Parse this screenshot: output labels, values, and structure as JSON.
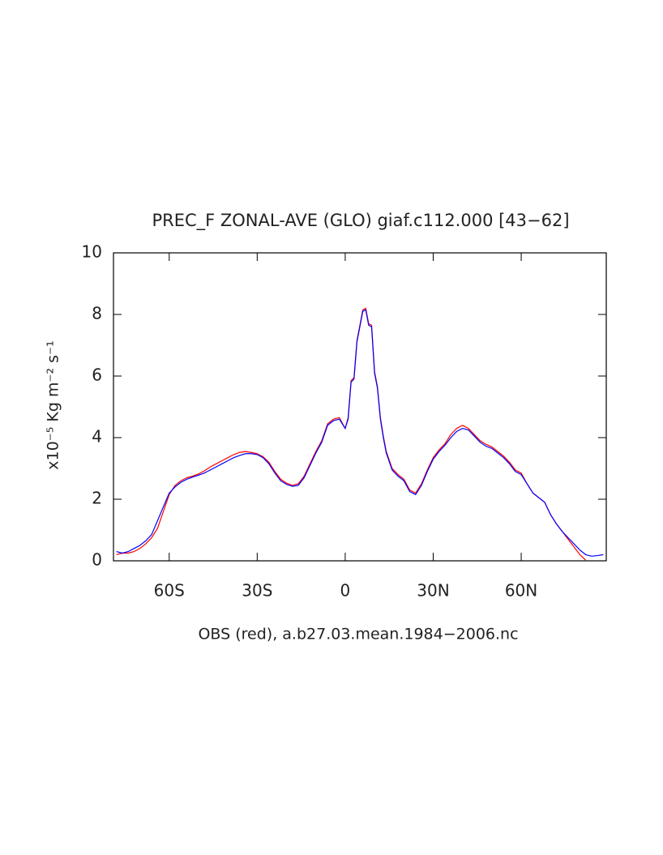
{
  "chart_data": {
    "type": "line",
    "title": "PREC_F ZONAL-AVE (GLO) giaf.c112.000 [43−62]",
    "y_label": "x10⁻⁵ Kg m⁻² s⁻¹",
    "x_label": "OBS (red), a.b27.03.mean.1984−2006.nc",
    "x": [
      -78,
      -76,
      -74,
      -72,
      -70,
      -68,
      -66,
      -64,
      -62,
      -60,
      -58,
      -56,
      -54,
      -52,
      -50,
      -48,
      -46,
      -44,
      -42,
      -40,
      -38,
      -36,
      -34,
      -32,
      -30,
      -28,
      -26,
      -24,
      -22,
      -20,
      -18,
      -16,
      -14,
      -12,
      -10,
      -8,
      -6,
      -4,
      -2,
      0,
      1,
      2,
      3,
      4,
      5,
      6,
      7,
      8,
      9,
      10,
      11,
      12,
      13,
      14,
      16,
      18,
      20,
      22,
      24,
      26,
      28,
      30,
      32,
      34,
      36,
      38,
      40,
      42,
      44,
      46,
      48,
      50,
      52,
      54,
      56,
      58,
      60,
      62,
      64,
      66,
      68,
      70,
      72,
      74,
      76,
      78,
      80,
      82,
      84,
      86,
      88
    ],
    "series": [
      {
        "color": "#ff0000",
        "values": [
          0.2,
          0.25,
          0.25,
          0.3,
          0.4,
          0.55,
          0.75,
          1.05,
          1.6,
          2.15,
          2.45,
          2.6,
          2.7,
          2.75,
          2.82,
          2.92,
          3.05,
          3.15,
          3.25,
          3.35,
          3.45,
          3.52,
          3.55,
          3.52,
          3.48,
          3.38,
          3.2,
          2.9,
          2.65,
          2.52,
          2.45,
          2.5,
          2.75,
          3.15,
          3.55,
          3.9,
          4.45,
          4.6,
          4.65,
          4.3,
          4.65,
          5.85,
          5.95,
          7.15,
          7.65,
          8.15,
          8.2,
          7.7,
          7.65,
          6.15,
          5.65,
          4.65,
          4.05,
          3.55,
          3.0,
          2.8,
          2.65,
          2.3,
          2.2,
          2.5,
          2.95,
          3.35,
          3.6,
          3.8,
          4.1,
          4.3,
          4.4,
          4.3,
          4.1,
          3.9,
          3.78,
          3.7,
          3.55,
          3.4,
          3.2,
          2.95,
          2.85,
          2.5,
          2.2,
          2.05,
          1.9,
          1.5,
          1.2,
          0.95,
          0.7,
          0.45,
          0.2,
          0.02,
          null,
          null,
          null
        ]
      },
      {
        "color": "#0000ff",
        "values": [
          0.3,
          0.25,
          0.3,
          0.4,
          0.5,
          0.65,
          0.85,
          1.3,
          1.75,
          2.2,
          2.4,
          2.55,
          2.65,
          2.72,
          2.78,
          2.85,
          2.95,
          3.05,
          3.15,
          3.25,
          3.35,
          3.42,
          3.48,
          3.48,
          3.45,
          3.35,
          3.15,
          2.85,
          2.6,
          2.48,
          2.42,
          2.45,
          2.7,
          3.1,
          3.5,
          3.85,
          4.4,
          4.55,
          4.6,
          4.3,
          4.6,
          5.8,
          5.9,
          7.1,
          7.6,
          8.1,
          8.15,
          7.65,
          7.6,
          6.1,
          5.6,
          4.6,
          4.0,
          3.5,
          2.95,
          2.75,
          2.6,
          2.25,
          2.15,
          2.45,
          2.9,
          3.3,
          3.55,
          3.75,
          4.0,
          4.2,
          4.3,
          4.25,
          4.05,
          3.85,
          3.72,
          3.65,
          3.5,
          3.35,
          3.15,
          2.9,
          2.8,
          2.5,
          2.2,
          2.05,
          1.9,
          1.5,
          1.2,
          0.95,
          0.75,
          0.55,
          0.35,
          0.2,
          0.15,
          0.17,
          0.2
        ]
      }
    ],
    "xlim": [
      -79,
      89
    ],
    "xticks": [
      {
        "value": -60,
        "label": "60S"
      },
      {
        "value": -30,
        "label": "30S"
      },
      0,
      {
        "value": 30,
        "label": "30N"
      },
      {
        "value": 60,
        "label": "60N"
      }
    ],
    "ylim": [
      0,
      10
    ],
    "yticks": [
      0,
      2,
      4,
      6,
      8,
      10
    ]
  }
}
